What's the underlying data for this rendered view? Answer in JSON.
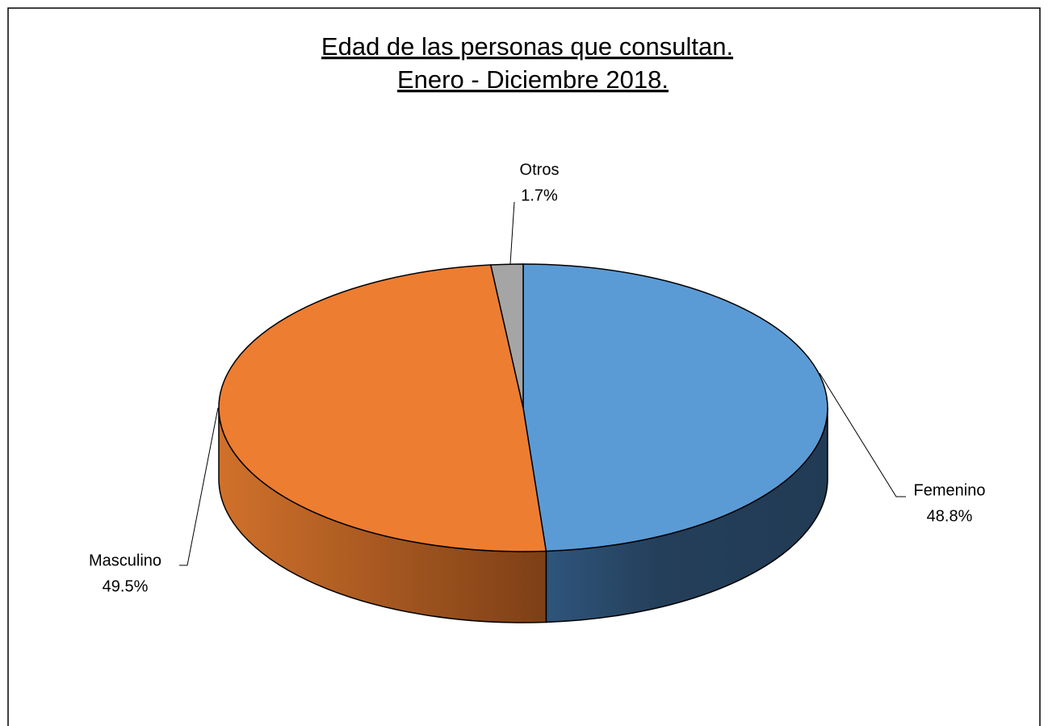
{
  "chart_data": {
    "type": "pie",
    "title": "Edad de las personas que consultan.",
    "subtitle": "Enero - Diciembre 2018.",
    "categories": [
      "Femenino",
      "Masculino",
      "Otros"
    ],
    "values": [
      48.8,
      49.5,
      1.7
    ],
    "value_labels": [
      "48.8%",
      "49.5%",
      "1.7%"
    ],
    "colors": [
      "#5b9bd5",
      "#ed7d31",
      "#a5a5a5"
    ]
  }
}
